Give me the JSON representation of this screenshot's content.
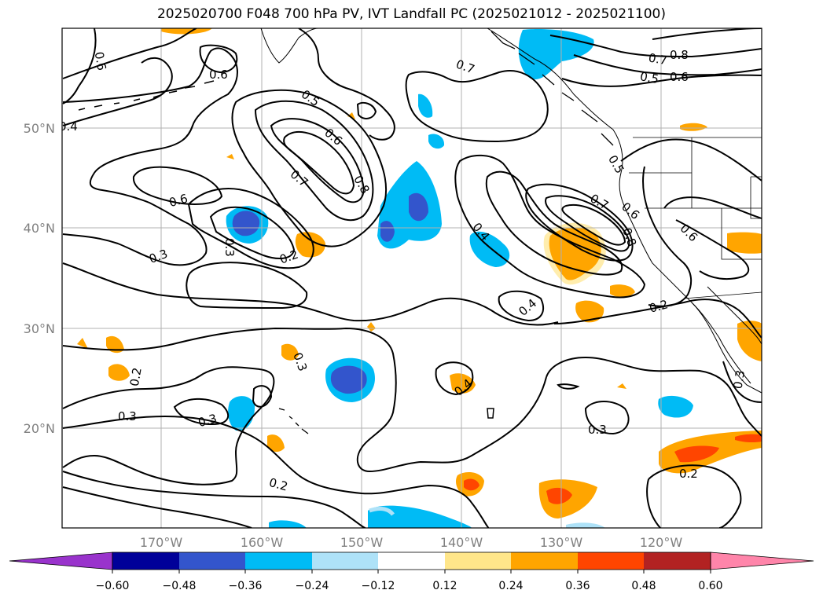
{
  "title": "2025020700 F048 700 hPa PV, IVT Landfall PC (2025021012 - 2025021100)",
  "map": {
    "lon_labels": [
      "170°W",
      "160°W",
      "150°W",
      "140°W",
      "130°W",
      "120°W"
    ],
    "lat_labels": [
      "50°N",
      "40°N",
      "30°N",
      "20°N"
    ],
    "contour_labels": [
      "0.6",
      "0.6",
      "0.4",
      "0.5",
      "0.6",
      "0.7",
      "0.8",
      "0.6",
      "0.3",
      "0.3",
      "0.2",
      "0.7",
      "0.8",
      "0.7",
      "0.5",
      "0.6",
      "0.4",
      "0.5",
      "0.7",
      "0.6",
      "0.8",
      "0.4",
      "0.6",
      "0.2",
      "0.3",
      "0.2",
      "0.3",
      "0.3",
      "0.2",
      "0.4",
      "0.3",
      "0.2",
      "0.3"
    ]
  },
  "colorbar": {
    "colors": [
      "#9933cc",
      "#000099",
      "#3355cc",
      "#00bbf5",
      "#aee2f8",
      "#ffffff",
      "#ffe68a",
      "#ffa500",
      "#ff4500",
      "#b22222",
      "#ff85aa"
    ],
    "tick_labels": [
      "−0.60",
      "−0.48",
      "−0.36",
      "−0.24",
      "−0.12",
      "0.12",
      "0.24",
      "0.36",
      "0.48",
      "0.60"
    ]
  }
}
